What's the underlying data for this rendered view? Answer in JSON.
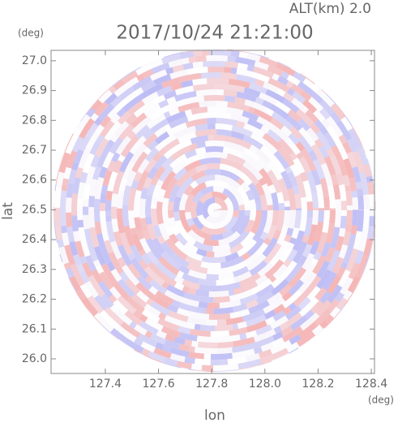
{
  "chart_data": {
    "type": "radar-field",
    "title": "2017/10/24 21:21:00",
    "subtitle": "ALT(km) 2.0",
    "x_label": "lon",
    "y_label": "lat",
    "x_unit": "(deg)",
    "y_unit": "(deg)",
    "xlim": [
      127.196,
      128.412
    ],
    "ylim": [
      25.951,
      27.035
    ],
    "xticks": [
      127.4,
      127.6,
      127.8,
      {
        "value": 128.0,
        "label": "128.0"
      },
      128.2,
      128.4
    ],
    "yticks": [
      {
        "value": 26.0,
        "label": "26.0"
      },
      26.1,
      26.2,
      26.3,
      26.4,
      26.5,
      26.6,
      26.7,
      26.8,
      26.9,
      {
        "value": 27.0,
        "label": "27.0"
      }
    ],
    "colors": [
      "#f5b5b5",
      "#bdbdf5",
      "#ffffff"
    ]
  }
}
